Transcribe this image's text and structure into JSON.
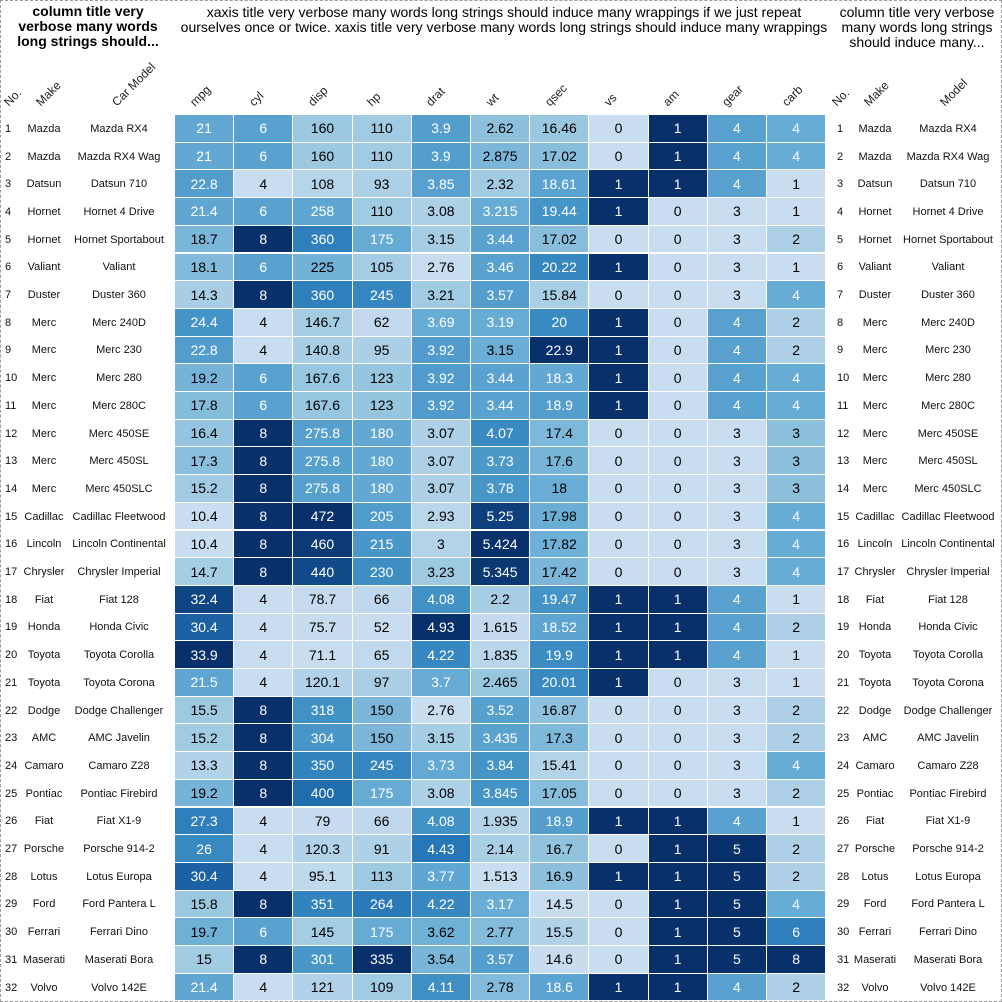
{
  "titles": {
    "left": "column title very verbose many words long strings should...",
    "middle": "xaxis title very verbose many words long strings should induce many wrappings if we just repeat ourselves once or twice. xaxis title very verbose many words long strings should induce many wrappings",
    "right": "column title very verbose many words long strings should induce many..."
  },
  "left_headers": [
    "No.",
    "Make",
    "Car Model"
  ],
  "right_headers": [
    "No.",
    "Make",
    "Model"
  ],
  "colors": {
    "light": "#d6e6f4",
    "dark": "#08306b",
    "text_dark": "#000000",
    "text_light": "#ffffff"
  },
  "chart_data": {
    "type": "heatmap",
    "columns": [
      "mpg",
      "cyl",
      "disp",
      "hp",
      "drat",
      "wt",
      "qsec",
      "vs",
      "am",
      "gear",
      "carb"
    ],
    "color_scale": "per-column blues",
    "rows": [
      {
        "no": "1",
        "make": "Mazda",
        "model": "Mazda RX4",
        "values": [
          "21",
          "6",
          "160",
          "110",
          "3.9",
          "2.62",
          "16.46",
          "0",
          "1",
          "4",
          "4"
        ]
      },
      {
        "no": "2",
        "make": "Mazda",
        "model": "Mazda RX4 Wag",
        "values": [
          "21",
          "6",
          "160",
          "110",
          "3.9",
          "2.875",
          "17.02",
          "0",
          "1",
          "4",
          "4"
        ]
      },
      {
        "no": "3",
        "make": "Datsun",
        "model": "Datsun 710",
        "values": [
          "22.8",
          "4",
          "108",
          "93",
          "3.85",
          "2.32",
          "18.61",
          "1",
          "1",
          "4",
          "1"
        ]
      },
      {
        "no": "4",
        "make": "Hornet",
        "model": "Hornet 4 Drive",
        "values": [
          "21.4",
          "6",
          "258",
          "110",
          "3.08",
          "3.215",
          "19.44",
          "1",
          "0",
          "3",
          "1"
        ]
      },
      {
        "no": "5",
        "make": "Hornet",
        "model": "Hornet Sportabout",
        "values": [
          "18.7",
          "8",
          "360",
          "175",
          "3.15",
          "3.44",
          "17.02",
          "0",
          "0",
          "3",
          "2"
        ]
      },
      {
        "no": "6",
        "make": "Valiant",
        "model": "Valiant",
        "values": [
          "18.1",
          "6",
          "225",
          "105",
          "2.76",
          "3.46",
          "20.22",
          "1",
          "0",
          "3",
          "1"
        ]
      },
      {
        "no": "7",
        "make": "Duster",
        "model": "Duster 360",
        "values": [
          "14.3",
          "8",
          "360",
          "245",
          "3.21",
          "3.57",
          "15.84",
          "0",
          "0",
          "3",
          "4"
        ]
      },
      {
        "no": "8",
        "make": "Merc",
        "model": "Merc 240D",
        "values": [
          "24.4",
          "4",
          "146.7",
          "62",
          "3.69",
          "3.19",
          "20",
          "1",
          "0",
          "4",
          "2"
        ]
      },
      {
        "no": "9",
        "make": "Merc",
        "model": "Merc 230",
        "values": [
          "22.8",
          "4",
          "140.8",
          "95",
          "3.92",
          "3.15",
          "22.9",
          "1",
          "0",
          "4",
          "2"
        ]
      },
      {
        "no": "10",
        "make": "Merc",
        "model": "Merc 280",
        "values": [
          "19.2",
          "6",
          "167.6",
          "123",
          "3.92",
          "3.44",
          "18.3",
          "1",
          "0",
          "4",
          "4"
        ]
      },
      {
        "no": "11",
        "make": "Merc",
        "model": "Merc 280C",
        "values": [
          "17.8",
          "6",
          "167.6",
          "123",
          "3.92",
          "3.44",
          "18.9",
          "1",
          "0",
          "4",
          "4"
        ]
      },
      {
        "no": "12",
        "make": "Merc",
        "model": "Merc 450SE",
        "values": [
          "16.4",
          "8",
          "275.8",
          "180",
          "3.07",
          "4.07",
          "17.4",
          "0",
          "0",
          "3",
          "3"
        ]
      },
      {
        "no": "13",
        "make": "Merc",
        "model": "Merc 450SL",
        "values": [
          "17.3",
          "8",
          "275.8",
          "180",
          "3.07",
          "3.73",
          "17.6",
          "0",
          "0",
          "3",
          "3"
        ]
      },
      {
        "no": "14",
        "make": "Merc",
        "model": "Merc 450SLC",
        "values": [
          "15.2",
          "8",
          "275.8",
          "180",
          "3.07",
          "3.78",
          "18",
          "0",
          "0",
          "3",
          "3"
        ]
      },
      {
        "no": "15",
        "make": "Cadillac",
        "model": "Cadillac Fleetwood",
        "values": [
          "10.4",
          "8",
          "472",
          "205",
          "2.93",
          "5.25",
          "17.98",
          "0",
          "0",
          "3",
          "4"
        ]
      },
      {
        "no": "16",
        "make": "Lincoln",
        "model": "Lincoln Continental",
        "values": [
          "10.4",
          "8",
          "460",
          "215",
          "3",
          "5.424",
          "17.82",
          "0",
          "0",
          "3",
          "4"
        ]
      },
      {
        "no": "17",
        "make": "Chrysler",
        "model": "Chrysler Imperial",
        "values": [
          "14.7",
          "8",
          "440",
          "230",
          "3.23",
          "5.345",
          "17.42",
          "0",
          "0",
          "3",
          "4"
        ]
      },
      {
        "no": "18",
        "make": "Fiat",
        "model": "Fiat 128",
        "values": [
          "32.4",
          "4",
          "78.7",
          "66",
          "4.08",
          "2.2",
          "19.47",
          "1",
          "1",
          "4",
          "1"
        ]
      },
      {
        "no": "19",
        "make": "Honda",
        "model": "Honda Civic",
        "values": [
          "30.4",
          "4",
          "75.7",
          "52",
          "4.93",
          "1.615",
          "18.52",
          "1",
          "1",
          "4",
          "2"
        ]
      },
      {
        "no": "20",
        "make": "Toyota",
        "model": "Toyota Corolla",
        "values": [
          "33.9",
          "4",
          "71.1",
          "65",
          "4.22",
          "1.835",
          "19.9",
          "1",
          "1",
          "4",
          "1"
        ]
      },
      {
        "no": "21",
        "make": "Toyota",
        "model": "Toyota Corona",
        "values": [
          "21.5",
          "4",
          "120.1",
          "97",
          "3.7",
          "2.465",
          "20.01",
          "1",
          "0",
          "3",
          "1"
        ]
      },
      {
        "no": "22",
        "make": "Dodge",
        "model": "Dodge Challenger",
        "values": [
          "15.5",
          "8",
          "318",
          "150",
          "2.76",
          "3.52",
          "16.87",
          "0",
          "0",
          "3",
          "2"
        ]
      },
      {
        "no": "23",
        "make": "AMC",
        "model": "AMC Javelin",
        "values": [
          "15.2",
          "8",
          "304",
          "150",
          "3.15",
          "3.435",
          "17.3",
          "0",
          "0",
          "3",
          "2"
        ]
      },
      {
        "no": "24",
        "make": "Camaro",
        "model": "Camaro Z28",
        "values": [
          "13.3",
          "8",
          "350",
          "245",
          "3.73",
          "3.84",
          "15.41",
          "0",
          "0",
          "3",
          "4"
        ]
      },
      {
        "no": "25",
        "make": "Pontiac",
        "model": "Pontiac Firebird",
        "values": [
          "19.2",
          "8",
          "400",
          "175",
          "3.08",
          "3.845",
          "17.05",
          "0",
          "0",
          "3",
          "2"
        ]
      },
      {
        "no": "26",
        "make": "Fiat",
        "model": "Fiat X1-9",
        "values": [
          "27.3",
          "4",
          "79",
          "66",
          "4.08",
          "1.935",
          "18.9",
          "1",
          "1",
          "4",
          "1"
        ]
      },
      {
        "no": "27",
        "make": "Porsche",
        "model": "Porsche 914-2",
        "values": [
          "26",
          "4",
          "120.3",
          "91",
          "4.43",
          "2.14",
          "16.7",
          "0",
          "1",
          "5",
          "2"
        ]
      },
      {
        "no": "28",
        "make": "Lotus",
        "model": "Lotus Europa",
        "values": [
          "30.4",
          "4",
          "95.1",
          "113",
          "3.77",
          "1.513",
          "16.9",
          "1",
          "1",
          "5",
          "2"
        ]
      },
      {
        "no": "29",
        "make": "Ford",
        "model": "Ford Pantera L",
        "values": [
          "15.8",
          "8",
          "351",
          "264",
          "4.22",
          "3.17",
          "14.5",
          "0",
          "1",
          "5",
          "4"
        ]
      },
      {
        "no": "30",
        "make": "Ferrari",
        "model": "Ferrari Dino",
        "values": [
          "19.7",
          "6",
          "145",
          "175",
          "3.62",
          "2.77",
          "15.5",
          "0",
          "1",
          "5",
          "6"
        ]
      },
      {
        "no": "31",
        "make": "Maserati",
        "model": "Maserati Bora",
        "values": [
          "15",
          "8",
          "301",
          "335",
          "3.54",
          "3.57",
          "14.6",
          "0",
          "1",
          "5",
          "8"
        ]
      },
      {
        "no": "32",
        "make": "Volvo",
        "model": "Volvo 142E",
        "values": [
          "21.4",
          "4",
          "121",
          "109",
          "4.11",
          "2.78",
          "18.6",
          "1",
          "1",
          "4",
          "2"
        ]
      }
    ]
  }
}
